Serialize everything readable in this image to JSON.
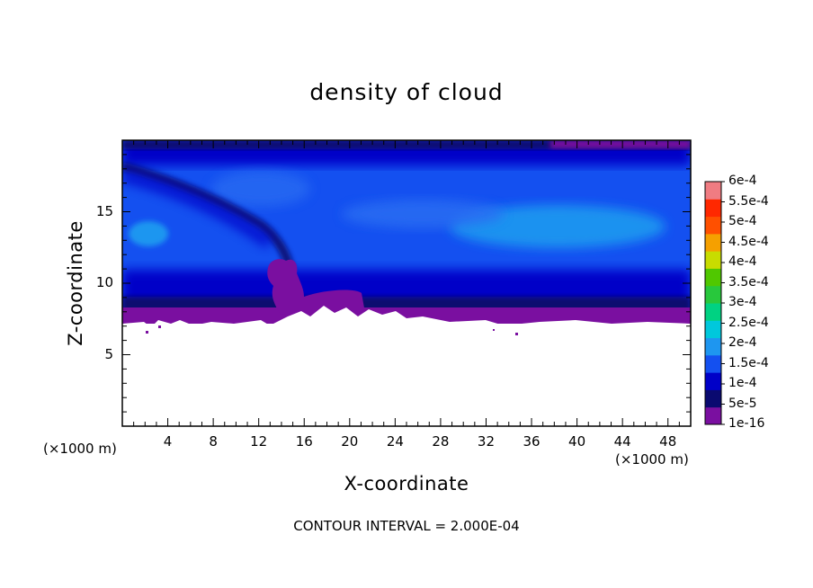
{
  "chart_data": {
    "type": "heatmap",
    "title": "density of cloud",
    "xlabel": "X-coordinate",
    "ylabel": "Z-coordinate",
    "x_unit": "(×1000 m)",
    "y_unit": "(×1000 m)",
    "xlim": [
      0,
      50
    ],
    "ylim": [
      0,
      20
    ],
    "x_ticks": [
      4,
      8,
      12,
      16,
      20,
      24,
      28,
      32,
      36,
      40,
      44,
      48
    ],
    "y_ticks": [
      5,
      10,
      15
    ],
    "grid": false,
    "footer": "CONTOUR INTERVAL = 2.000E-04",
    "colorbar": {
      "labels": [
        "6e-4",
        "5.5e-4",
        "5e-4",
        "4.5e-4",
        "4e-4",
        "3.5e-4",
        "3e-4",
        "2.5e-4",
        "2e-4",
        "1.5e-4",
        "1e-4",
        "5e-5",
        "1e-16"
      ],
      "colors": [
        "#7a0fa0",
        "#0a0a70",
        "#0000c8",
        "#1450f0",
        "#1e96f0",
        "#00c8dc",
        "#00d282",
        "#28c83c",
        "#50c800",
        "#c8dc00",
        "#f5a000",
        "#ff5000",
        "#ff2800",
        "#f07c82"
      ]
    }
  }
}
